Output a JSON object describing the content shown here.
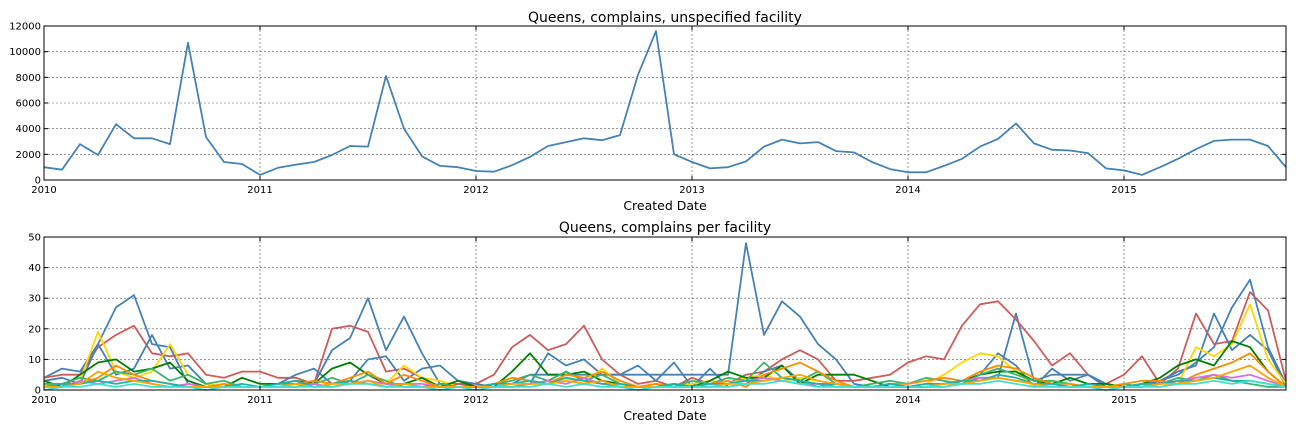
{
  "chart_data": [
    {
      "type": "line",
      "title": "Queens, complains, unspecified facility",
      "xlabel": "Created Date",
      "ylabel": "",
      "xlim": [
        "2010-01",
        "2015-10"
      ],
      "ylim": [
        0,
        12000
      ],
      "yticks": [
        0,
        2000,
        4000,
        6000,
        8000,
        10000,
        12000
      ],
      "xticks": [
        "2010",
        "2011",
        "2012",
        "2013",
        "2014",
        "2015"
      ],
      "grid": true,
      "start_month": "2010-01",
      "series": [
        {
          "color": "#4682b4",
          "values": [
            1000,
            800,
            2800,
            1950,
            4350,
            3250,
            3250,
            2800,
            10700,
            3350,
            1400,
            1250,
            400,
            950,
            1200,
            1400,
            1950,
            2650,
            2600,
            8100,
            4000,
            1850,
            1100,
            1000,
            700,
            650,
            1150,
            1800,
            2650,
            2950,
            3250,
            3100,
            3500,
            8200,
            11600,
            2000,
            1400,
            900,
            1000,
            1450,
            2600,
            3150,
            2850,
            2950,
            2250,
            2150,
            1400,
            850,
            600,
            600,
            1100,
            1650,
            2600,
            3200,
            4400,
            2850,
            2350,
            2300,
            2100,
            900,
            750,
            400,
            1000,
            1650,
            2400,
            3050,
            3150,
            3150,
            2650,
            1000
          ]
        }
      ]
    },
    {
      "type": "line",
      "title": "Queens, complains per facility",
      "xlabel": "Created Date",
      "ylabel": "",
      "xlim": [
        "2010-01",
        "2015-10"
      ],
      "ylim": [
        0,
        50
      ],
      "yticks": [
        0,
        10,
        20,
        30,
        40,
        50
      ],
      "xticks": [
        "2010",
        "2011",
        "2012",
        "2013",
        "2014",
        "2015"
      ],
      "grid": true,
      "start_month": "2010-01",
      "series": [
        {
          "color": "#4682b4",
          "values": [
            4,
            7,
            6,
            15,
            27,
            31,
            15,
            14,
            2,
            1,
            1,
            1,
            1,
            1,
            1,
            2,
            13,
            17,
            30,
            13,
            24,
            12,
            2,
            2,
            1,
            1,
            2,
            5,
            5,
            5,
            5,
            5,
            5,
            5,
            5,
            5,
            5,
            5,
            5,
            48,
            18,
            29,
            24,
            15,
            10,
            2,
            1,
            1,
            1,
            1,
            1,
            2,
            4,
            4,
            25,
            3,
            5,
            5,
            5,
            1,
            1,
            1,
            3,
            5,
            9,
            14,
            27,
            36,
            14,
            2
          ]
        },
        {
          "color": "#cd5c5c",
          "values": [
            4,
            5,
            5,
            14,
            18,
            21,
            12,
            11,
            12,
            5,
            4,
            6,
            6,
            4,
            4,
            2,
            20,
            21,
            19,
            6,
            7,
            4,
            1,
            2,
            2,
            5,
            14,
            18,
            13,
            15,
            21,
            10,
            5,
            2,
            3,
            1,
            4,
            2,
            2,
            5,
            6,
            10,
            13,
            10,
            3,
            3,
            4,
            5,
            9,
            11,
            10,
            21,
            28,
            29,
            23,
            16,
            8,
            12,
            5,
            2,
            5,
            11,
            2,
            7,
            25,
            15,
            16,
            32,
            26,
            3
          ]
        },
        {
          "color": "#4682b4",
          "values": [
            3,
            4,
            2,
            15,
            5,
            7,
            18,
            7,
            8,
            2,
            1,
            1,
            1,
            2,
            5,
            7,
            2,
            3,
            10,
            11,
            3,
            7,
            8,
            3,
            2,
            1,
            1,
            2,
            12,
            8,
            10,
            5,
            5,
            8,
            3,
            9,
            1,
            7,
            1,
            2,
            6,
            8,
            3,
            1,
            2,
            1,
            1,
            2,
            1,
            1,
            2,
            3,
            5,
            12,
            8,
            1,
            7,
            3,
            5,
            2,
            1,
            2,
            3,
            6,
            8,
            25,
            13,
            18,
            13,
            1
          ]
        },
        {
          "color": "#ffd700",
          "values": [
            2,
            1,
            3,
            19,
            6,
            4,
            6,
            15,
            5,
            2,
            1,
            1,
            1,
            2,
            2,
            1,
            1,
            2,
            3,
            2,
            8,
            4,
            3,
            1,
            1,
            1,
            1,
            2,
            3,
            4,
            2,
            7,
            2,
            1,
            1,
            1,
            2,
            3,
            2,
            4,
            5,
            3,
            4,
            3,
            2,
            1,
            1,
            1,
            1,
            2,
            5,
            9,
            12,
            11,
            6,
            1,
            3,
            2,
            1,
            1,
            1,
            2,
            1,
            2,
            14,
            11,
            15,
            28,
            10,
            2
          ]
        },
        {
          "color": "#008000",
          "values": [
            3,
            1,
            5,
            9,
            10,
            6,
            7,
            9,
            3,
            1,
            1,
            4,
            2,
            2,
            3,
            2,
            7,
            9,
            5,
            2,
            2,
            4,
            1,
            3,
            1,
            1,
            6,
            12,
            5,
            5,
            6,
            3,
            2,
            1,
            1,
            2,
            1,
            3,
            6,
            4,
            4,
            8,
            2,
            5,
            5,
            5,
            3,
            1,
            1,
            1,
            2,
            3,
            5,
            6,
            6,
            3,
            2,
            4,
            2,
            2,
            1,
            2,
            4,
            8,
            10,
            8,
            16,
            14,
            6,
            1
          ]
        },
        {
          "color": "#3cb371",
          "values": [
            2,
            2,
            4,
            3,
            6,
            5,
            7,
            3,
            5,
            2,
            3,
            1,
            1,
            2,
            2,
            2,
            4,
            2,
            5,
            3,
            1,
            1,
            2,
            1,
            1,
            2,
            3,
            5,
            3,
            6,
            3,
            5,
            2,
            1,
            2,
            1,
            3,
            2,
            4,
            3,
            9,
            4,
            3,
            6,
            2,
            1,
            2,
            3,
            2,
            4,
            3,
            2,
            5,
            7,
            5,
            3,
            3,
            2,
            1,
            1,
            2,
            1,
            2,
            4,
            3,
            5,
            3,
            2,
            1,
            1
          ]
        },
        {
          "color": "#ff8c00",
          "values": [
            1,
            2,
            2,
            4,
            8,
            5,
            3,
            2,
            1,
            1,
            2,
            1,
            1,
            1,
            2,
            3,
            2,
            4,
            6,
            2,
            5,
            3,
            1,
            1,
            1,
            2,
            4,
            3,
            2,
            5,
            4,
            6,
            3,
            1,
            2,
            1,
            1,
            2,
            3,
            1,
            5,
            7,
            9,
            6,
            3,
            1,
            1,
            2,
            2,
            3,
            4,
            3,
            6,
            8,
            7,
            4,
            2,
            2,
            1,
            1,
            2,
            3,
            3,
            2,
            5,
            7,
            9,
            12,
            6,
            1
          ]
        },
        {
          "color": "#da70d6",
          "values": [
            1,
            1,
            3,
            2,
            3,
            4,
            2,
            1,
            2,
            1,
            1,
            1,
            1,
            1,
            1,
            2,
            1,
            2,
            3,
            2,
            2,
            2,
            1,
            1,
            1,
            1,
            1,
            2,
            3,
            2,
            4,
            2,
            1,
            1,
            1,
            1,
            1,
            1,
            2,
            3,
            4,
            3,
            2,
            2,
            1,
            1,
            1,
            1,
            1,
            2,
            2,
            3,
            4,
            4,
            3,
            2,
            2,
            1,
            1,
            1,
            1,
            2,
            2,
            3,
            4,
            5,
            4,
            5,
            3,
            1
          ]
        },
        {
          "color": "#20b2aa",
          "values": [
            1,
            2,
            2,
            3,
            2,
            3,
            3,
            2,
            1,
            1,
            1,
            2,
            1,
            2,
            3,
            1,
            2,
            3,
            2,
            1,
            2,
            1,
            1,
            1,
            1,
            2,
            2,
            3,
            2,
            4,
            3,
            2,
            2,
            1,
            1,
            2,
            1,
            2,
            2,
            3,
            3,
            4,
            3,
            2,
            2,
            1,
            1,
            2,
            1,
            2,
            2,
            3,
            3,
            5,
            4,
            2,
            2,
            1,
            2,
            1,
            1,
            2,
            2,
            3,
            3,
            4,
            3,
            3,
            2,
            1
          ]
        },
        {
          "color": "#ffa500",
          "values": [
            1,
            1,
            2,
            6,
            4,
            3,
            2,
            1,
            1,
            1,
            1,
            1,
            1,
            1,
            2,
            1,
            2,
            2,
            3,
            1,
            2,
            1,
            1,
            1,
            1,
            1,
            2,
            2,
            2,
            3,
            2,
            3,
            1,
            1,
            1,
            1,
            1,
            1,
            2,
            2,
            3,
            4,
            5,
            3,
            2,
            1,
            1,
            1,
            1,
            1,
            2,
            2,
            3,
            4,
            3,
            2,
            1,
            1,
            1,
            1,
            1,
            1,
            2,
            2,
            3,
            4,
            6,
            8,
            4,
            1
          ]
        },
        {
          "color": "#40e0d0",
          "values": [
            0,
            1,
            1,
            2,
            1,
            2,
            1,
            1,
            1,
            0,
            1,
            1,
            1,
            1,
            1,
            1,
            1,
            2,
            2,
            1,
            1,
            1,
            0,
            1,
            0,
            1,
            1,
            1,
            2,
            1,
            2,
            1,
            1,
            0,
            1,
            1,
            1,
            1,
            1,
            2,
            2,
            3,
            2,
            1,
            1,
            1,
            1,
            1,
            1,
            1,
            1,
            2,
            2,
            3,
            2,
            1,
            1,
            1,
            1,
            0,
            1,
            1,
            1,
            2,
            2,
            3,
            2,
            3,
            2,
            1
          ]
        }
      ]
    }
  ]
}
